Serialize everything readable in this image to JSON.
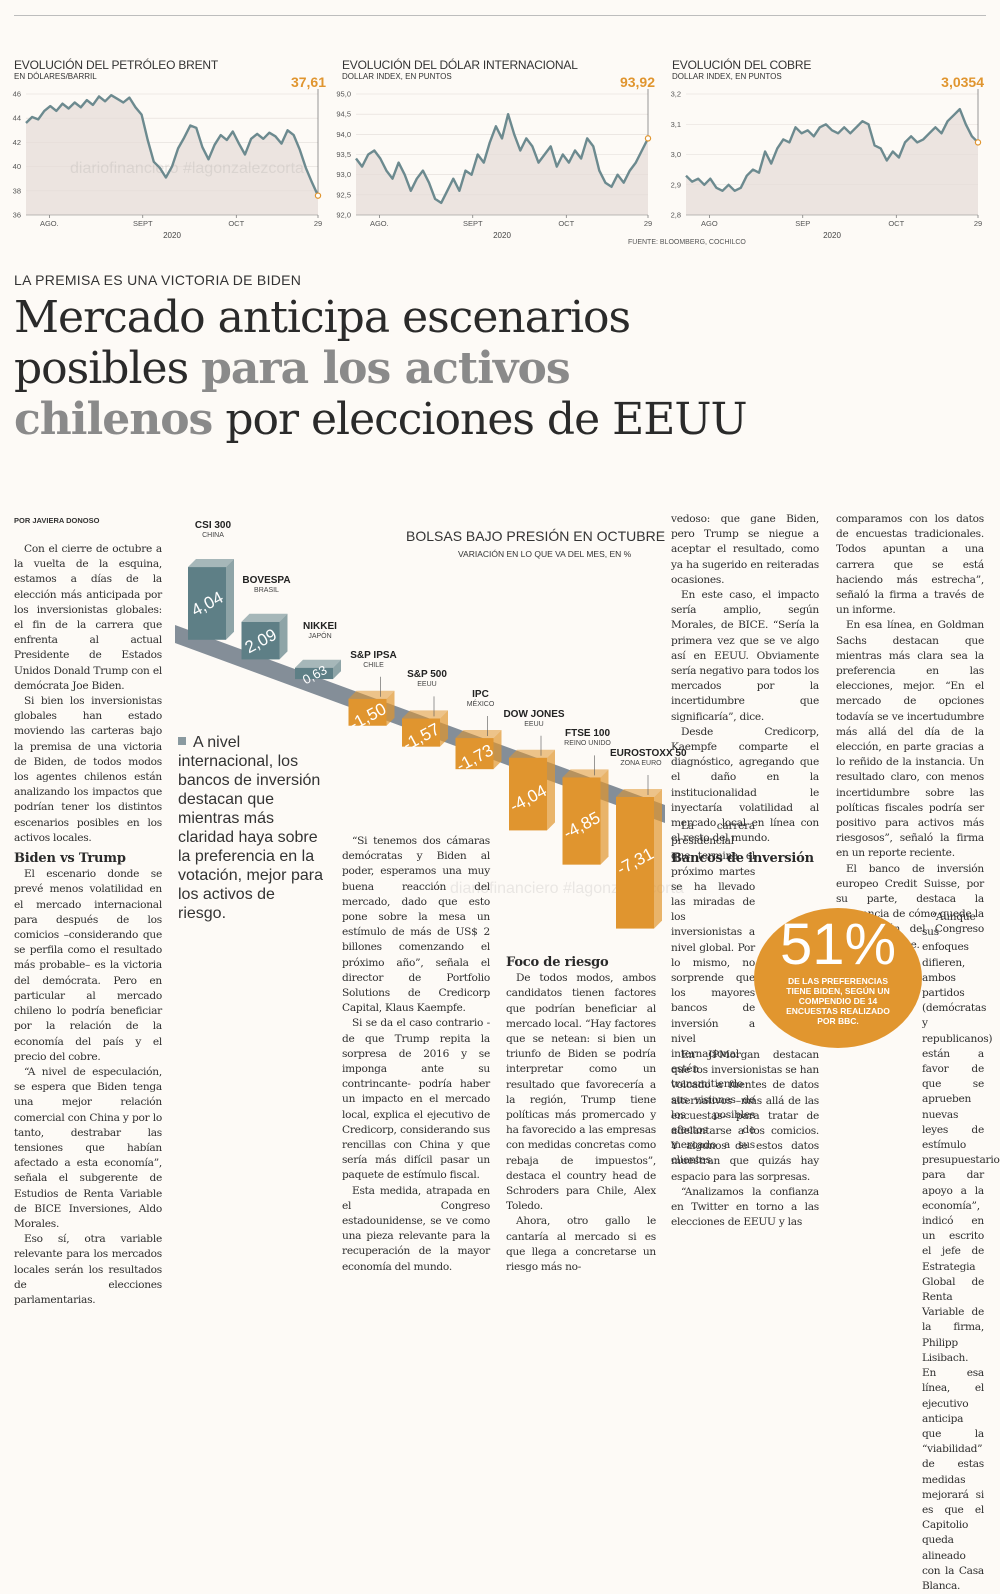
{
  "charts": {
    "chart_data": [
      {
        "type": "area",
        "title": "EVOLUCIÓN DEL PETRÓLEO BRENT",
        "subtitle": "EN DÓLARES/BARRIL",
        "last_value_label": "37,61",
        "ylim": [
          36,
          46
        ],
        "yticks": [
          "46",
          "44",
          "42",
          "40",
          "38",
          "36"
        ],
        "xticks": [
          "AGO.",
          "SEPT",
          "OCT",
          "29"
        ],
        "year": "2020",
        "values": [
          43.6,
          44.1,
          43.9,
          44.6,
          45.0,
          44.6,
          45.2,
          44.8,
          45.3,
          44.9,
          45.5,
          45.1,
          45.8,
          45.4,
          45.9,
          45.6,
          45.3,
          45.7,
          44.9,
          44.3,
          42.2,
          40.4,
          39.9,
          39.1,
          40.0,
          41.5,
          42.4,
          43.4,
          43.2,
          41.6,
          40.6,
          41.8,
          42.6,
          42.2,
          42.9,
          41.9,
          41.0,
          42.3,
          42.7,
          42.3,
          42.8,
          42.5,
          41.9,
          43.0,
          42.6,
          41.4,
          39.9,
          38.7,
          37.6
        ]
      },
      {
        "type": "area",
        "title": "EVOLUCIÓN DEL DÓLAR INTERNACIONAL",
        "subtitle": "DOLLAR INDEX, EN PUNTOS",
        "last_value_label": "93,92",
        "ylim": [
          92.0,
          95.0
        ],
        "yticks": [
          "95,0",
          "94,5",
          "94,0",
          "93,5",
          "93,0",
          "92,5",
          "92,0"
        ],
        "xticks": [
          "AGO.",
          "SEPT",
          "OCT",
          "29"
        ],
        "year": "2020",
        "values": [
          93.4,
          93.2,
          93.5,
          93.6,
          93.4,
          93.1,
          92.9,
          93.3,
          93.0,
          92.6,
          92.9,
          93.1,
          92.8,
          92.4,
          92.3,
          92.6,
          92.9,
          92.6,
          93.1,
          93.0,
          93.5,
          93.3,
          93.8,
          94.2,
          93.9,
          94.5,
          94.0,
          93.6,
          93.9,
          93.7,
          93.3,
          93.5,
          93.7,
          93.2,
          93.5,
          93.3,
          93.6,
          93.4,
          93.9,
          93.7,
          93.1,
          92.8,
          92.7,
          93.0,
          92.8,
          93.1,
          93.3,
          93.6,
          93.9
        ]
      },
      {
        "type": "area",
        "title": "EVOLUCIÓN DEL COBRE",
        "subtitle": "DOLLAR INDEX, EN PUNTOS",
        "last_value_label": "3,0354",
        "ylim": [
          2.8,
          3.2
        ],
        "yticks": [
          "3,2",
          "3,1",
          "3,0",
          "2,9",
          "2,8"
        ],
        "xticks": [
          "AGO",
          "SEP",
          "OCT",
          "29"
        ],
        "year": "2020",
        "values": [
          2.93,
          2.91,
          2.92,
          2.9,
          2.92,
          2.89,
          2.88,
          2.9,
          2.88,
          2.89,
          2.93,
          2.95,
          2.94,
          3.01,
          2.97,
          3.02,
          3.05,
          3.04,
          3.09,
          3.07,
          3.08,
          3.06,
          3.09,
          3.1,
          3.08,
          3.07,
          3.09,
          3.07,
          3.09,
          3.11,
          3.1,
          3.03,
          3.02,
          2.98,
          3.01,
          2.99,
          3.04,
          3.06,
          3.04,
          3.05,
          3.07,
          3.09,
          3.07,
          3.11,
          3.13,
          3.15,
          3.1,
          3.06,
          3.04
        ]
      }
    ],
    "source": "FUENTE: BLOOMBERG, COCHILCO"
  },
  "watermark": "diariofinanciero #lagonzalezcorta",
  "article": {
    "kicker": "LA PREMISA ES UNA VICTORIA DE BIDEN",
    "headline_1": "Mercado anticipa escenarios",
    "headline_2a": "posibles ",
    "headline_2b": "para los activos",
    "headline_3a": "chilenos",
    "headline_3b": " por elecciones de EEUU",
    "byline": "POR JAVIERA DONOSO",
    "col1": [
      "Con el cierre de octubre a la vuelta de la esquina, estamos a días de la elección más anticipada por los inversionistas globales: el fin de la carrera que enfrenta al actual Presidente de Estados Unidos Donald Trump con el demócrata Joe Biden.",
      "Si bien los inversionistas globales han estado moviendo las carteras bajo la premisa de una victoria de Biden, de todos modos los agentes chilenos están analizando los impactos que podrían tener los distintos escenarios posibles en los activos locales."
    ],
    "h_biden": "Biden vs Trump",
    "col1b": [
      "El escenario donde se prevé menos volatilidad en el mercado internacional para después de los comicios –considerando que se perfila como el resultado más probable– es la victoria del demócrata. Pero en particular al mercado chileno lo podría beneficiar por la relación de la economía del país y el precio del cobre.",
      "“A nivel de especulación, se espera que Biden tenga una mejor relación comercial con China y por lo tanto, destrabar las tensiones que habían afectado a esta economía”, señala el subgerente de Estudios de Renta Variable de BICE Inversiones, Aldo Morales.",
      "Eso sí, otra variable relevante para los mercados locales serán los resultados de elecciones parlamentarias."
    ],
    "pull_quote": "A nivel internacional, los bancos de inversión destacan que mientras más claridad haya sobre la preferencia en la votación, mejor para los activos de riesgo.",
    "col3": [
      "“Si tenemos dos cámaras demócratas y Biden al poder, esperamos una muy buena reacción del mercado, dado que esto pone sobre la mesa un estímulo de más de US$ 2 billones comenzando el próximo año”, señala el director de Portfolio Solutions de Credicorp Capital, Klaus Kaempfe.",
      "Si se da el caso contrario -de que Trump repita la sorpresa de 2016 y se imponga ante su contrincante- podría haber un impacto en el mercado local, explica el ejecutivo de Credicorp, considerando sus rencillas con China y que sería más difícil pasar un paquete de estímulo fiscal.",
      "Esta medida, atrapada en el Congreso estadounidense, se ve como una pieza relevante para la recuperación de la mayor economía del mundo."
    ],
    "h_foco": "Foco de riesgo",
    "col4": [
      "De todos modos, ambos candidatos tienen factores que podrían beneficiar al mercado local. “Hay factores que se netean: si bien un triunfo de Biden se podría interpretar como un resultado que favorecería a la región, Trump tiene políticas más promercado y ha favorecido a las empresas con medidas concretas como rebaja de impuestos”, destaca el country head de Schroders para Chile, Alex Toledo.",
      "Ahora, otro gallo le cantaría al mercado si es que llega a concretarse un riesgo más no-"
    ],
    "col5a": [
      "vedoso: que gane Biden, pero Trump se niegue a aceptar el resultado, como ya ha sugerido en reiteradas ocasiones.",
      "En este caso, el impacto sería amplio, según Morales, de BICE. “Sería la primera vez que se ve algo así en EEUU. Obviamente sería negativo para todos los mercados por la incertidumbre que significaría”, dice.",
      "Desde Credicorp, Kaempfe comparte el diagnóstico, agregando que el daño en la institucionalidad le inyectaría volatilidad al mercado local en línea con el resto del mundo."
    ],
    "h_bancos": "Bancos de inversión",
    "col5b": [
      "La carrera presidencial que termina el próximo martes se ha llevado las miradas de los inversionistas a nivel global. Por lo mismo, no sorprende que los mayores bancos de inversión a nivel internacional estén transmitiendo sus visiones de los posibles efectos de mercado a sus clientes.",
      "En JPMorgan destacan que los inversionistas se han volcado a fuentes de datos alternativos –más allá de las encuestas– para tratar de adelantarse a los comicios. Y algunos de estos datos muestran que quizás hay espacio para las sorpresas.",
      "“Analizamos la confianza en Twitter en torno a las elecciones de EEUU y las"
    ],
    "col6": [
      "comparamos con los datos de encuestas tradicionales. Todos apuntan a una carrera que se está haciendo más estrecha”, señaló la firma a través de un informe.",
      "En esa línea, en Goldman Sachs destacan que mientras más clara sea la preferencia en las elecciones, mejor. “En el mercado de opciones todavía se ve incertudumbre más allá del día de la elección, en parte gracias a lo reñido de la instancia. Un resultado claro, con menos incertidumbre sobre las políticas fiscales podría ser positivo para activos más riesgosos”, señaló la firma en un reporte reciente.",
      "El banco de inversión europeo Credit Suisse, por su parte, destaca la relevancia de cómo quede la composición del Congreso estadounidense."
    ],
    "col6b": [
      "“Aunque sus enfoques difieren, ambos partidos (demócratas y republicanos) están a favor de que se aprueben nuevas leyes de estímulo presupuestario para dar apoyo a la economía”, indicó en un escrito el jefe de Estrategia Global de Renta Variable de la firma, Philipp Lisibach. En esa línea, el ejecutivo anticipa que la “viabilidad” de estas medidas mejorará si es que el Capitolio queda alineado con la Casa Blanca."
    ],
    "stat": {
      "value": "51%",
      "caption": "DE LAS PREFERENCIAS TIENE BIDEN, SEGÚN UN COMPENDIO DE 14 ENCUESTAS REALIZADO POR BBC."
    }
  },
  "infographic": {
    "title": "BOLSAS BAJO PRESIÓN EN OCTUBRE",
    "subtitle": "VARIACIÓN EN LO QUE VA DEL MES, EN %",
    "chart_data": {
      "type": "bar",
      "title": "BOLSAS BAJO PRESIÓN EN OCTUBRE",
      "subtitle": "VARIACIÓN EN LO QUE VA DEL MES, EN %",
      "categories": [
        "CSI 300",
        "BOVESPA",
        "NIKKEI",
        "S&P IPSA",
        "S&P 500",
        "IPC",
        "DOW JONES",
        "FTSE 100",
        "EUROSTOXX 50"
      ],
      "countries": [
        "CHINA",
        "BRASIL",
        "JAPÓN",
        "CHILE",
        "EEUU",
        "MÉXICO",
        "EEUU",
        "REINO UNIDO",
        "ZONA EURO"
      ],
      "values": [
        4.04,
        2.09,
        0.63,
        -1.5,
        -1.57,
        -1.73,
        -4.04,
        -4.85,
        -7.31
      ],
      "labels": [
        "4,04",
        "2,09",
        "0,63",
        "-1,50",
        "-1,57",
        "-1,73",
        "-4,04",
        "-4,85",
        "-7,31"
      ],
      "colors": {
        "positive": "#5e7f86",
        "negative": "#e0952f"
      }
    }
  },
  "colors": {
    "accent": "#e0952f",
    "positive_bar": "#5e7f86",
    "chart_line": "#6c8a8f",
    "chart_fill": "#e6dcd8"
  }
}
